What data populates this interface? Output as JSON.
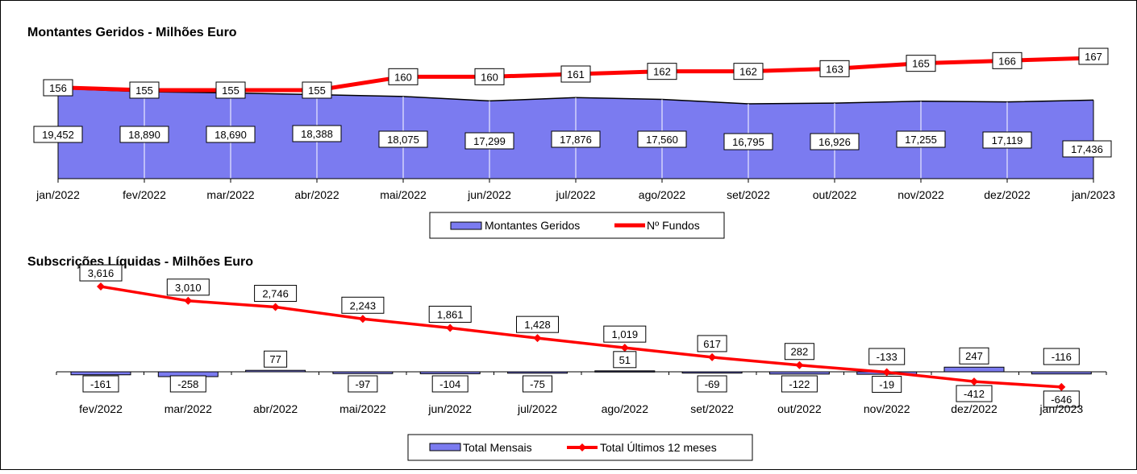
{
  "colors": {
    "area_fill": "#7b7bf0",
    "bar_fill": "#7b7bf0",
    "line": "#ff0000",
    "outline": "#000000"
  },
  "chart_data": [
    {
      "type": "area",
      "title": "Montantes Geridos - Milhões Euro",
      "categories": [
        "jan/2022",
        "fev/2022",
        "mar/2022",
        "abr/2022",
        "mai/2022",
        "jun/2022",
        "jul/2022",
        "ago/2022",
        "set/2022",
        "out/2022",
        "nov/2022",
        "dez/2022",
        "jan/2023"
      ],
      "series": [
        {
          "name": "Montantes Geridos",
          "kind": "area",
          "values": [
            19452,
            18890,
            18690,
            18388,
            18075,
            17299,
            17876,
            17560,
            16795,
            16926,
            17255,
            17119,
            17436
          ],
          "labels": [
            "19,452",
            "18,890",
            "18,690",
            "18,388",
            "18,075",
            "17,299",
            "17,876",
            "17,560",
            "16,795",
            "16,926",
            "17,255",
            "17,119",
            "17,436"
          ]
        },
        {
          "name": "Nº Fundos",
          "kind": "line",
          "values": [
            156,
            155,
            155,
            155,
            160,
            160,
            161,
            162,
            162,
            163,
            165,
            166,
            167
          ],
          "labels": [
            "156",
            "155",
            "155",
            "155",
            "160",
            "160",
            "161",
            "162",
            "162",
            "163",
            "165",
            "166",
            "167"
          ]
        }
      ],
      "legend_position": "bottom-center",
      "grid": "vertical"
    },
    {
      "type": "bar",
      "title": "Subscrições Líquidas - Milhões Euro",
      "categories": [
        "fev/2022",
        "mar/2022",
        "abr/2022",
        "mai/2022",
        "jun/2022",
        "jul/2022",
        "ago/2022",
        "set/2022",
        "out/2022",
        "nov/2022",
        "dez/2022",
        "jan/2023"
      ],
      "series": [
        {
          "name": "Total Mensais",
          "kind": "bar",
          "values": [
            -161,
            -258,
            77,
            -97,
            -104,
            -75,
            51,
            -69,
            -122,
            -133,
            247,
            -116
          ],
          "labels": [
            "-161",
            "-258",
            "77",
            "-97",
            "-104",
            "-75",
            "51",
            "-69",
            "-122",
            "-133",
            "247",
            "-116"
          ]
        },
        {
          "name": "Total Últimos 12 meses",
          "kind": "line",
          "values": [
            3616,
            3010,
            2746,
            2243,
            1861,
            1428,
            1019,
            617,
            282,
            -19,
            -412,
            -646
          ],
          "labels": [
            "3,616",
            "3,010",
            "2,746",
            "2,243",
            "1,861",
            "1,428",
            "1,019",
            "617",
            "282",
            "-19",
            "-412",
            "-646"
          ]
        }
      ],
      "legend_position": "bottom-center",
      "grid": "none"
    }
  ]
}
